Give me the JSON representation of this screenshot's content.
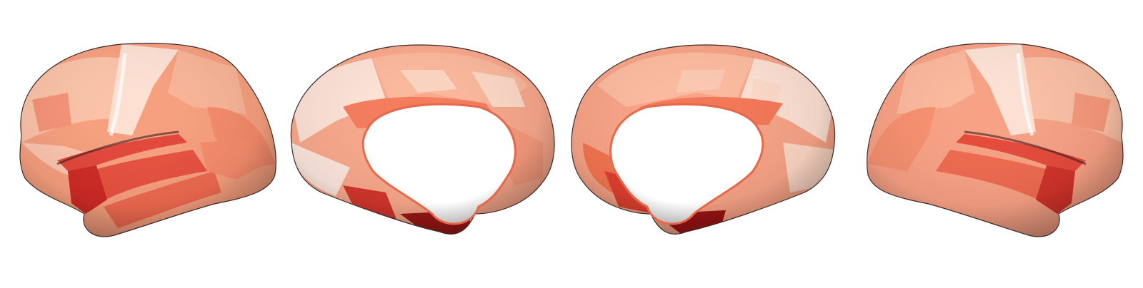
{
  "figure": {
    "kind": "cortical-surface-map",
    "background_color": "#ffffff",
    "colormap": {
      "name": "Reds",
      "stops": [
        "#fde9df",
        "#fcc9b3",
        "#fca98a",
        "#f88a68",
        "#ef6548",
        "#d7301f",
        "#b7141a",
        "#7f0b12"
      ]
    },
    "views": [
      {
        "id": "left-lateral",
        "hemisphere": "left",
        "aspect": "lateral"
      },
      {
        "id": "left-medial",
        "hemisphere": "left",
        "aspect": "medial"
      },
      {
        "id": "right-medial",
        "hemisphere": "right",
        "aspect": "medial"
      },
      {
        "id": "right-lateral",
        "hemisphere": "right",
        "aspect": "lateral"
      }
    ]
  }
}
